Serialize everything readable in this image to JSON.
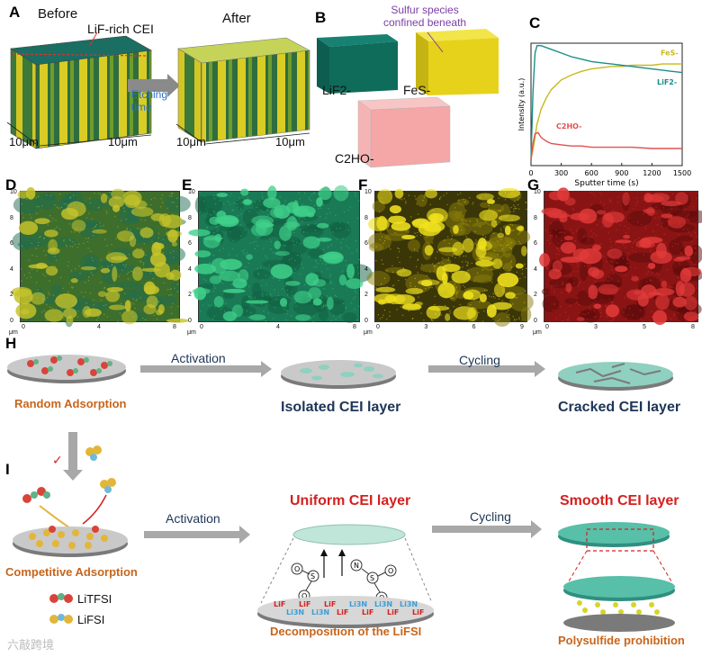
{
  "panelA": {
    "letter": "A",
    "before": "Before",
    "after": "After",
    "cei_label": "LiF-rich CEI",
    "etching": "Etching\ntime",
    "dims": [
      "10μm",
      "10μm",
      "10μm",
      "10μm"
    ]
  },
  "panelB": {
    "letter": "B",
    "sulfur_note": "Sulfur species\nconfined beneath",
    "lif": "LiF2-",
    "fes": "FeS-",
    "c2ho": "C2HO-",
    "colors": {
      "lif": "#0f6b5a",
      "fes": "#e6d21a",
      "c2ho": "#ee6a6a"
    }
  },
  "panelC": {
    "letter": "C",
    "chart_data": {
      "type": "line",
      "title": "",
      "xlabel": "Sputter time (s)",
      "ylabel": "Intensity (a.u.)",
      "xlim": [
        0,
        1500
      ],
      "xticks": [
        0,
        300,
        600,
        900,
        1200,
        1500
      ],
      "series": [
        {
          "name": "FeS-",
          "color": "#c9b81c",
          "x": [
            0,
            30,
            60,
            100,
            150,
            200,
            300,
            400,
            500,
            600,
            700,
            800,
            900,
            1000,
            1100,
            1200,
            1300,
            1400,
            1500
          ],
          "y": [
            0.05,
            0.18,
            0.34,
            0.46,
            0.55,
            0.62,
            0.7,
            0.74,
            0.77,
            0.79,
            0.8,
            0.81,
            0.81,
            0.82,
            0.82,
            0.82,
            0.83,
            0.83,
            0.83
          ]
        },
        {
          "name": "LiF2-",
          "color": "#1a8f86",
          "x": [
            0,
            20,
            40,
            60,
            100,
            200,
            300,
            400,
            500,
            600,
            700,
            800,
            900,
            1000,
            1100,
            1200,
            1300,
            1400,
            1500
          ],
          "y": [
            0.05,
            0.6,
            0.92,
            0.98,
            0.98,
            0.95,
            0.92,
            0.89,
            0.87,
            0.85,
            0.84,
            0.83,
            0.82,
            0.81,
            0.8,
            0.79,
            0.78,
            0.77,
            0.76
          ]
        },
        {
          "name": "C2HO-",
          "color": "#e25050",
          "x": [
            0,
            20,
            40,
            70,
            100,
            150,
            200,
            300,
            400,
            500,
            600,
            800,
            1000,
            1200,
            1400,
            1500
          ],
          "y": [
            0.05,
            0.18,
            0.26,
            0.27,
            0.23,
            0.2,
            0.18,
            0.17,
            0.16,
            0.16,
            0.15,
            0.15,
            0.15,
            0.14,
            0.14,
            0.14
          ]
        }
      ],
      "series_labels": [
        "FeS-",
        "LiF2-",
        "C2HO-"
      ]
    }
  },
  "maps": {
    "D": {
      "letter": "D",
      "base": "#3d6e2c",
      "blob": "#c7c32a",
      "blob2": "#1d6b50"
    },
    "E": {
      "letter": "E",
      "base": "#1a7a55",
      "blob": "#3fd08a",
      "blob2": "#0f5e40"
    },
    "F": {
      "letter": "F",
      "base": "#3a3608",
      "blob": "#f0e21e",
      "blob2": "#8a7d0a"
    },
    "G": {
      "letter": "G",
      "base": "#8a1414",
      "blob": "#e23a3a",
      "blob2": "#5a0a0a"
    },
    "unit": "μm",
    "yticks": [
      "10",
      "8",
      "6",
      "4",
      "2",
      "0"
    ],
    "xticksD": [
      "0",
      "4",
      "8"
    ],
    "xticksE": [
      "0",
      "4",
      "8"
    ],
    "xticksF": [
      "0",
      "3",
      "6",
      "9"
    ],
    "xticksG": [
      "0",
      "3",
      "5",
      "8"
    ]
  },
  "panelH": {
    "letter": "H",
    "random": "Random Adsorption",
    "activation": "Activation",
    "isolated": "Isolated CEI layer",
    "cycling": "Cycling",
    "cracked": "Cracked CEI layer"
  },
  "panelI": {
    "letter": "I",
    "competitive": "Competitive Adsorption",
    "activation": "Activation",
    "uniform": "Uniform CEI layer",
    "cycling": "Cycling",
    "smooth": "Smooth CEI layer",
    "decomp": "Decomposition of the LiFSI",
    "prohibition": "Polysulfide prohibition",
    "legend_litfsi": "LiTFSI",
    "legend_lifsi": "LiFSI",
    "layer_text": [
      "LiF",
      "Li3N",
      "LiF",
      "Li3N",
      "LiF",
      "LiF",
      "Li3N",
      "LiF",
      "Li3N",
      "LiF",
      "Li3N",
      "LiF"
    ],
    "mol_s": "S",
    "mol_o": "O",
    "mol_n": "N",
    "checkmark": "✓"
  },
  "watermark": "六敲跨境"
}
